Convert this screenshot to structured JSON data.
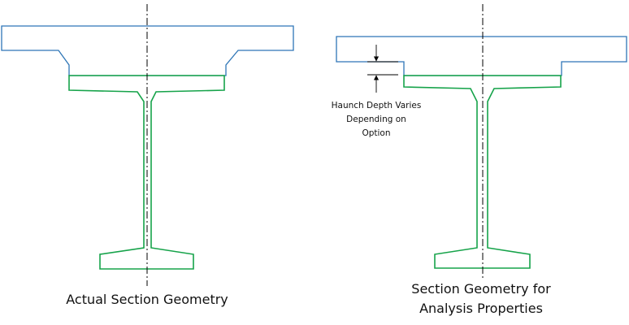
{
  "colors": {
    "slab": "#2e75b6",
    "girder": "#16a34a",
    "lines": "#000000",
    "background": "#ffffff"
  },
  "left_panel": {
    "caption": "Actual Section Geometry"
  },
  "right_panel": {
    "caption_line1": "Section Geometry for",
    "caption_line2": "Analysis Properties",
    "note_line1": "Haunch Depth Varies",
    "note_line2": "Depending on",
    "note_line3": "Option"
  }
}
